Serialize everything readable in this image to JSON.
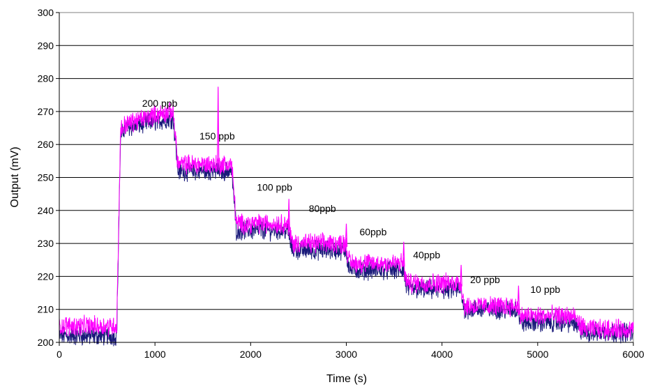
{
  "chart_data": {
    "type": "line",
    "title": "",
    "xlabel": "Time (s)",
    "ylabel": "Output (mV)",
    "xlim": [
      0,
      6000
    ],
    "ylim": [
      200,
      300
    ],
    "x_ticks": [
      0,
      1000,
      2000,
      3000,
      4000,
      5000,
      6000
    ],
    "y_ticks": [
      200,
      210,
      220,
      230,
      240,
      250,
      260,
      270,
      280,
      290,
      300
    ],
    "grid": "horizontal",
    "legend": "none",
    "series": [
      {
        "color": "#1a1a7a",
        "x": [
          0,
          590,
          600,
          640,
          680,
          1000,
          1190,
          1210,
          1240,
          1600,
          1800,
          1820,
          1850,
          2390,
          2410,
          2440,
          3000,
          3010,
          3040,
          3600,
          3610,
          3640,
          4200,
          4210,
          4240,
          4800,
          4810,
          4840,
          5380,
          5420,
          5500,
          6000
        ],
        "y": [
          202,
          202,
          202,
          262,
          265,
          267,
          268,
          262,
          252,
          252,
          252,
          246,
          234,
          234,
          231,
          228,
          228,
          225,
          222,
          222,
          219,
          216,
          216,
          213,
          210,
          210,
          207,
          206,
          206,
          204,
          203,
          203
        ]
      },
      {
        "color": "#ff00ff",
        "x": [
          0,
          590,
          600,
          640,
          680,
          1000,
          1190,
          1210,
          1240,
          1600,
          1800,
          1820,
          1850,
          2390,
          2410,
          2440,
          3000,
          3010,
          3040,
          3600,
          3610,
          3640,
          4200,
          4210,
          4240,
          4800,
          4810,
          4840,
          5380,
          5420,
          5500,
          6000
        ],
        "y": [
          205,
          205,
          205,
          264,
          266,
          269,
          270,
          264,
          254,
          254,
          254,
          248,
          236,
          236,
          233,
          230,
          230,
          227,
          224,
          224,
          221,
          218,
          218,
          215,
          211,
          211,
          208,
          208,
          208,
          206,
          204,
          204
        ]
      }
    ],
    "annotations": [
      {
        "text": "200 ppb",
        "x": 1050,
        "y": 271.5
      },
      {
        "text": "150 ppb",
        "x": 1650,
        "y": 261.5
      },
      {
        "text": "100 ppb",
        "x": 2250,
        "y": 246
      },
      {
        "text": "80ppb",
        "x": 2750,
        "y": 239.5
      },
      {
        "text": "60ppb",
        "x": 3280,
        "y": 232.5
      },
      {
        "text": "40ppb",
        "x": 3840,
        "y": 225.5
      },
      {
        "text": "20 ppb",
        "x": 4450,
        "y": 218
      },
      {
        "text": "10 ppb",
        "x": 5080,
        "y": 215
      }
    ],
    "spikes": [
      {
        "x": 1660,
        "y": 277.5
      },
      {
        "x": 2400,
        "y": 243.5
      },
      {
        "x": 3000,
        "y": 236
      },
      {
        "x": 3600,
        "y": 230.5
      },
      {
        "x": 4200,
        "y": 223.5
      },
      {
        "x": 4800,
        "y": 217.2
      }
    ]
  }
}
